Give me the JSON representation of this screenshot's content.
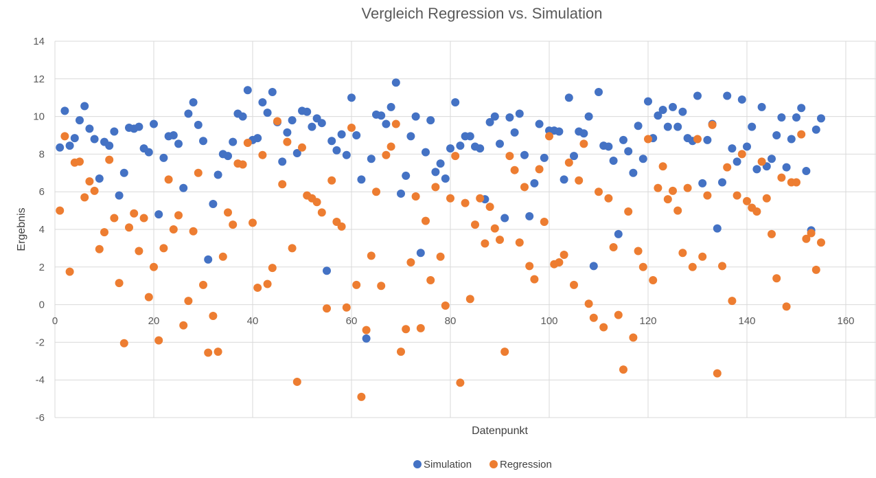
{
  "chart_data": {
    "type": "scatter",
    "title": "Vergleich Regression vs. Simulation",
    "xlabel": "Datenpunkt",
    "ylabel": "Ergebnis",
    "xlim": [
      0,
      160
    ],
    "ylim": [
      -6,
      14
    ],
    "xticks": [
      0,
      20,
      40,
      60,
      80,
      100,
      120,
      140,
      160
    ],
    "yticks": [
      -6,
      -4,
      -2,
      0,
      2,
      4,
      6,
      8,
      10,
      12,
      14
    ],
    "grid": true,
    "legend_position": "bottom-center",
    "series": [
      {
        "name": "Simulation",
        "color": "#4472C4",
        "x": [
          1,
          2,
          3,
          4,
          5,
          6,
          7,
          8,
          9,
          10,
          11,
          12,
          13,
          14,
          15,
          16,
          17,
          18,
          19,
          20,
          21,
          22,
          23,
          24,
          25,
          26,
          27,
          28,
          29,
          30,
          31,
          32,
          33,
          34,
          35,
          36,
          37,
          38,
          39,
          40,
          41,
          42,
          43,
          44,
          45,
          46,
          47,
          48,
          49,
          50,
          51,
          52,
          53,
          54,
          55,
          56,
          57,
          58,
          59,
          60,
          61,
          62,
          63,
          64,
          65,
          66,
          67,
          68,
          69,
          70,
          71,
          72,
          73,
          74,
          75,
          76,
          77,
          78,
          79,
          80,
          81,
          82,
          83,
          84,
          85,
          86,
          87,
          88,
          89,
          90,
          91,
          92,
          93,
          94,
          95,
          96,
          97,
          98,
          99,
          100,
          101,
          102,
          103,
          104,
          105,
          106,
          107,
          108,
          109,
          110,
          111,
          112,
          113,
          114,
          115,
          116,
          117,
          118,
          119,
          120,
          121,
          122,
          123,
          124,
          125,
          126,
          127,
          128,
          129,
          130,
          131,
          132,
          133,
          134,
          135,
          136,
          137,
          138,
          139,
          140,
          141,
          142,
          143,
          144,
          145,
          146,
          147,
          148,
          149,
          150,
          151,
          152,
          153,
          154,
          155
        ],
        "y": [
          8.35,
          10.3,
          8.45,
          8.85,
          9.8,
          10.55,
          9.35,
          8.8,
          6.7,
          8.65,
          8.45,
          9.2,
          5.8,
          7.0,
          9.4,
          9.35,
          9.45,
          8.3,
          8.1,
          9.6,
          4.8,
          7.8,
          8.95,
          9.0,
          8.55,
          6.2,
          10.15,
          10.75,
          9.55,
          8.7,
          2.4,
          5.35,
          6.9,
          8.0,
          7.9,
          8.65,
          10.15,
          10.0,
          11.4,
          8.75,
          8.85,
          10.75,
          10.2,
          11.3,
          9.7,
          7.6,
          9.15,
          9.8,
          8.05,
          10.3,
          10.25,
          9.45,
          9.9,
          9.65,
          1.8,
          8.7,
          8.2,
          9.05,
          7.95,
          11.0,
          9.0,
          6.65,
          -1.8,
          7.75,
          10.1,
          10.05,
          9.6,
          10.5,
          11.8,
          5.9,
          6.85,
          8.95,
          10.0,
          2.75,
          8.1,
          9.8,
          7.05,
          7.5,
          6.7,
          8.3,
          10.75,
          8.45,
          8.95,
          8.95,
          8.4,
          8.3,
          5.6,
          9.7,
          10.0,
          8.55,
          4.6,
          9.95,
          9.15,
          10.15,
          7.95,
          4.7,
          6.45,
          9.6,
          7.8,
          9.25,
          9.25,
          9.2,
          6.65,
          11.0,
          7.9,
          9.2,
          9.1,
          10.0,
          2.05,
          11.3,
          8.45,
          8.4,
          7.65,
          3.75,
          8.75,
          8.15,
          7.0,
          9.5,
          7.75,
          10.8,
          8.85,
          10.05,
          10.35,
          9.45,
          10.5,
          9.45,
          10.25,
          8.85,
          8.7,
          11.1,
          6.45,
          8.75,
          9.6,
          4.05,
          6.5,
          11.1,
          8.3,
          7.6,
          10.9,
          8.4,
          9.45,
          7.2,
          10.5,
          7.35,
          7.75,
          9.0,
          9.95,
          7.3,
          8.8,
          9.95,
          10.45,
          7.1,
          3.95,
          9.3,
          9.9
        ]
      },
      {
        "name": "Regression",
        "color": "#ED7D31",
        "x": [
          1,
          2,
          3,
          4,
          5,
          6,
          7,
          8,
          9,
          10,
          11,
          12,
          13,
          14,
          15,
          16,
          17,
          18,
          19,
          20,
          21,
          22,
          23,
          24,
          25,
          26,
          27,
          28,
          29,
          30,
          31,
          32,
          33,
          34,
          35,
          36,
          37,
          38,
          39,
          40,
          41,
          42,
          43,
          44,
          45,
          46,
          47,
          48,
          49,
          50,
          51,
          52,
          53,
          54,
          55,
          56,
          57,
          58,
          59,
          60,
          61,
          62,
          63,
          64,
          65,
          66,
          67,
          68,
          69,
          70,
          71,
          72,
          73,
          74,
          75,
          76,
          77,
          78,
          79,
          80,
          81,
          82,
          83,
          84,
          85,
          86,
          87,
          88,
          89,
          90,
          91,
          92,
          93,
          94,
          95,
          96,
          97,
          98,
          99,
          100,
          101,
          102,
          103,
          104,
          105,
          106,
          107,
          108,
          109,
          110,
          111,
          112,
          113,
          114,
          115,
          116,
          117,
          118,
          119,
          120,
          121,
          122,
          123,
          124,
          125,
          126,
          127,
          128,
          129,
          130,
          131,
          132,
          133,
          134,
          135,
          136,
          137,
          138,
          139,
          140,
          141,
          142,
          143,
          144,
          145,
          146,
          147,
          148,
          149,
          150,
          151,
          152,
          153,
          154,
          155
        ],
        "y": [
          5.0,
          8.95,
          1.75,
          7.55,
          7.6,
          5.7,
          6.55,
          6.05,
          2.95,
          3.85,
          7.7,
          4.6,
          1.15,
          -2.05,
          4.1,
          4.85,
          2.85,
          4.6,
          0.4,
          2.0,
          -1.9,
          3.0,
          6.65,
          4.0,
          4.75,
          -1.1,
          0.2,
          3.9,
          7.0,
          1.05,
          -2.55,
          -0.6,
          -2.5,
          2.55,
          4.9,
          4.25,
          7.5,
          7.45,
          8.6,
          4.35,
          0.9,
          7.95,
          1.1,
          1.95,
          9.75,
          6.4,
          8.65,
          3.0,
          -4.1,
          8.35,
          5.8,
          5.65,
          5.45,
          4.9,
          -0.2,
          6.6,
          4.4,
          4.15,
          -0.15,
          9.4,
          1.05,
          -4.9,
          -1.35,
          2.6,
          6.0,
          1.0,
          7.95,
          8.4,
          9.6,
          -2.5,
          -1.3,
          2.25,
          5.75,
          -1.25,
          4.45,
          1.3,
          6.25,
          2.55,
          -0.05,
          5.65,
          7.9,
          -4.15,
          5.4,
          0.3,
          4.25,
          5.65,
          3.25,
          5.2,
          4.05,
          3.45,
          -2.5,
          7.9,
          7.15,
          3.3,
          6.25,
          2.05,
          1.35,
          7.2,
          4.4,
          8.95,
          2.15,
          2.25,
          2.65,
          7.55,
          1.05,
          6.6,
          8.55,
          0.05,
          -0.7,
          6.0,
          -1.2,
          5.65,
          3.05,
          -0.55,
          -3.45,
          4.95,
          -1.75,
          2.85,
          2.0,
          8.8,
          1.3,
          6.2,
          7.35,
          5.6,
          6.05,
          5.0,
          2.75,
          6.2,
          2.0,
          8.8,
          2.55,
          5.8,
          9.55,
          -3.65,
          2.05,
          7.3,
          0.2,
          5.8,
          8.0,
          5.5,
          5.15,
          4.95,
          7.6,
          5.65,
          3.75,
          1.4,
          6.75,
          -0.1,
          6.5,
          6.5,
          9.05,
          3.5,
          3.8,
          1.85,
          3.3
        ]
      }
    ]
  }
}
